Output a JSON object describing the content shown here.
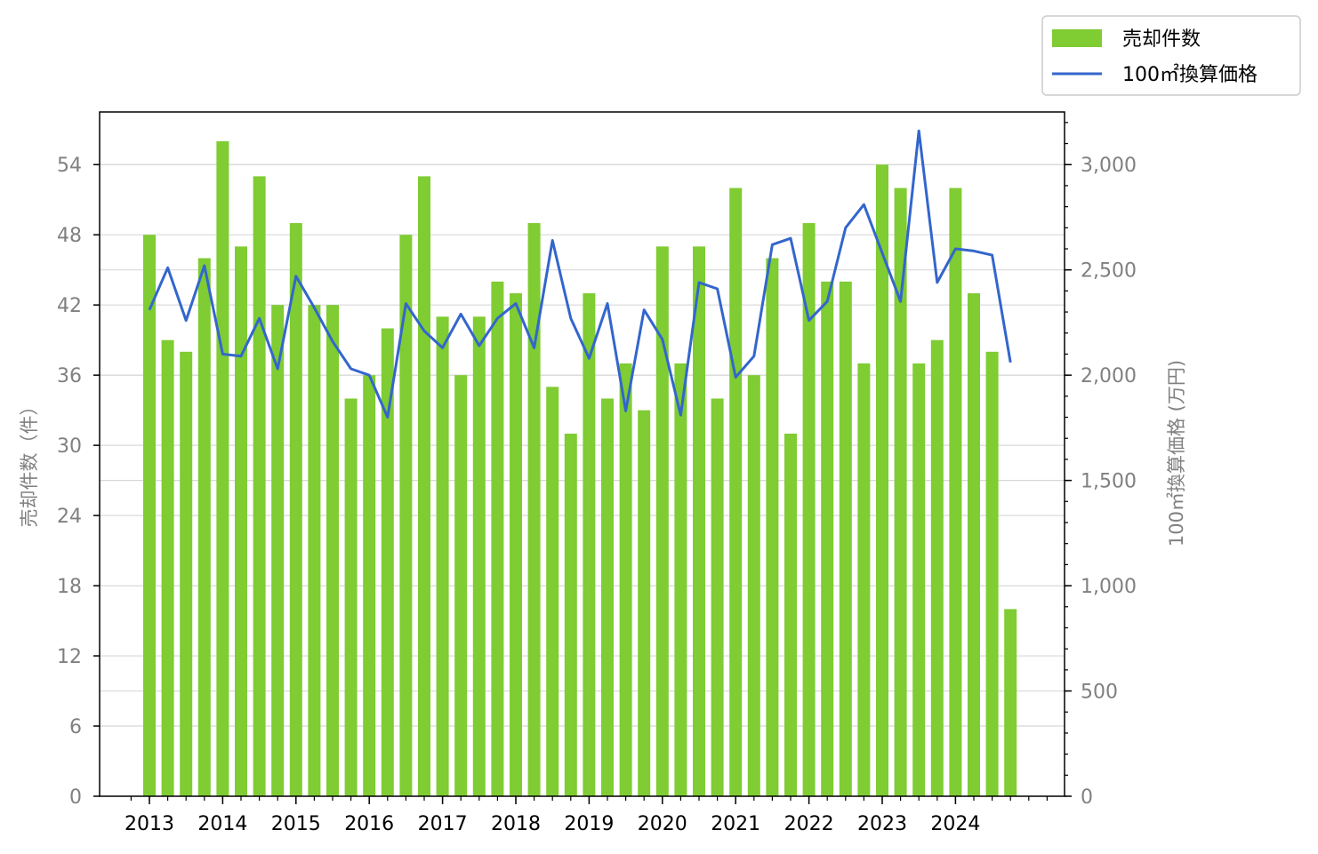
{
  "chart_data": {
    "type": "bar+line",
    "title": "",
    "x_tick_labels": [
      "2013",
      "2014",
      "2015",
      "2016",
      "2017",
      "2018",
      "2019",
      "2020",
      "2021",
      "2022",
      "2023",
      "2024"
    ],
    "periods_per_year": 4,
    "series": [
      {
        "name": "売却件数",
        "type": "bar",
        "axis": "left",
        "color": "#7fcc33",
        "values": [
          48,
          39,
          38,
          46,
          56,
          47,
          53,
          42,
          49,
          42,
          42,
          34,
          36,
          40,
          48,
          53,
          41,
          36,
          41,
          44,
          43,
          49,
          35,
          31,
          43,
          34,
          37,
          33,
          47,
          37,
          47,
          34,
          52,
          36,
          46,
          31,
          49,
          44,
          44,
          37,
          54,
          52,
          37,
          39,
          52,
          43,
          38,
          16
        ]
      },
      {
        "name": "100㎡換算価格",
        "type": "line",
        "axis": "right",
        "color": "#3366cc",
        "values": [
          2310,
          2510,
          2260,
          2520,
          2100,
          2090,
          2270,
          2030,
          2470,
          2320,
          2160,
          2030,
          2000,
          1800,
          2340,
          2210,
          2130,
          2290,
          2140,
          2270,
          2340,
          2130,
          2640,
          2270,
          2080,
          2340,
          1830,
          2310,
          2170,
          1810,
          2440,
          2410,
          1990,
          2090,
          2620,
          2650,
          2260,
          2350,
          2700,
          2810,
          2580,
          2350,
          3160,
          2440,
          2600,
          2590,
          2570,
          2060
        ]
      }
    ],
    "y_left": {
      "label": "売却件数（件）",
      "ticks": [
        "0",
        "6",
        "12",
        "18",
        "24",
        "30",
        "36",
        "42",
        "48",
        "54"
      ],
      "max": 58.5
    },
    "y_right": {
      "label": "100㎡換算価格 (万円)",
      "ticks": [
        "0",
        "500",
        "1,000",
        "1,500",
        "2,000",
        "2,500",
        "3,000"
      ],
      "max": 3250
    },
    "grid": "horizontal",
    "legend": "top-right"
  }
}
